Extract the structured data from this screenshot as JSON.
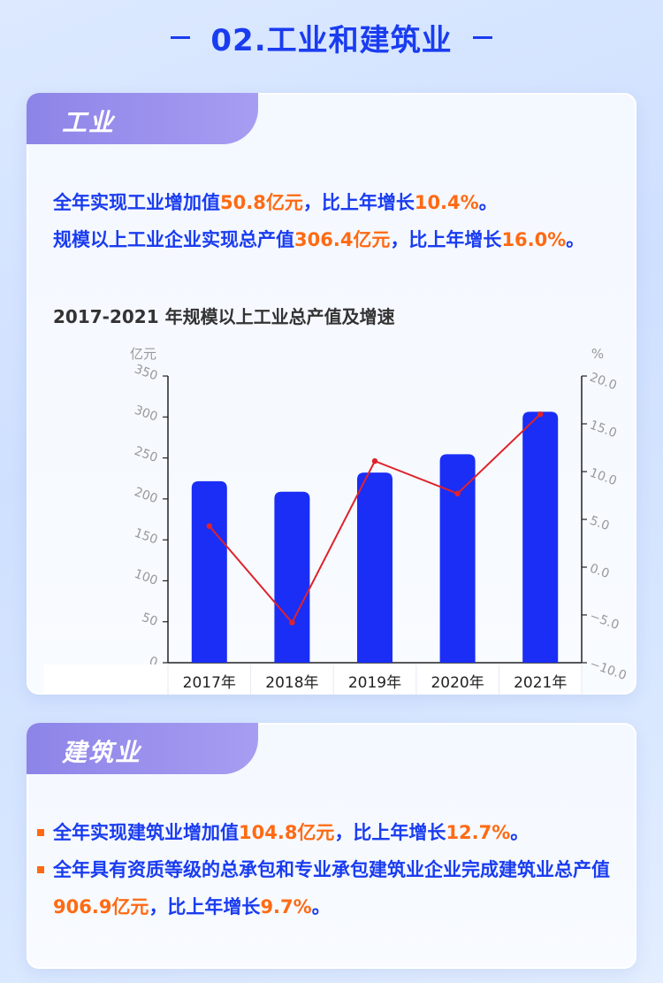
{
  "header": {
    "title": "02.工业和建筑业"
  },
  "industry": {
    "tab": "工业",
    "line1": {
      "a": "全年实现工业增加值",
      "b": "50.8亿元",
      "c": "，比上年增长",
      "d": "10.4%",
      "e": "。"
    },
    "line2": {
      "a": "规模以上工业企业实现总产值",
      "b": "306.4亿元",
      "c": "，比上年增长",
      "d": "16.0%",
      "e": "。"
    },
    "chart_title": "2017-2021 年规模以上工业总产值及增速"
  },
  "chart_data": {
    "type": "bar",
    "title": "2017-2021 年规模以上工业总产值及增速",
    "categories": [
      "2017年",
      "2018年",
      "2019年",
      "2020年",
      "2021年"
    ],
    "series": [
      {
        "name": "工业总产值",
        "type": "bar",
        "axis": "left",
        "values": [
          221.6,
          208.8,
          232.1,
          254.5,
          306.4
        ],
        "color": "#1a2ef5"
      },
      {
        "name": "增速",
        "type": "line",
        "axis": "right",
        "values": [
          4.3,
          -5.8,
          11.1,
          7.7,
          16.0
        ],
        "color": "#e0222b"
      }
    ],
    "ylabel_left": "亿元",
    "ylabel_right": "%",
    "ylim_left": [
      0,
      350
    ],
    "ylim_right": [
      -10,
      20
    ],
    "yticks_left": [
      "0",
      "50",
      "100",
      "150",
      "200",
      "250",
      "300",
      "350"
    ],
    "yticks_right": [
      "−10.0",
      "−5.0",
      "0.0",
      "5.0",
      "10.0",
      "15.0",
      "20.0"
    ],
    "table_values_bar": [
      "221.6",
      "208.8",
      "232.1",
      "254.5",
      "306.4"
    ],
    "table_values_line": [
      "4.3",
      "−5.8",
      "11.1",
      "7.7",
      "16.0"
    ]
  },
  "construction": {
    "tab": "建筑业",
    "line1": {
      "a": "全年实现建筑业增加值",
      "b": "104.8亿元",
      "c": "，比上年增长",
      "d": "12.7%",
      "e": "。"
    },
    "line2": {
      "a": "全年具有资质等级的总承包和专业承包建筑业企业完成建筑业总产值",
      "b": "906.9亿元",
      "c": "，比上年增长",
      "d": "9.7%",
      "e": "。"
    }
  }
}
